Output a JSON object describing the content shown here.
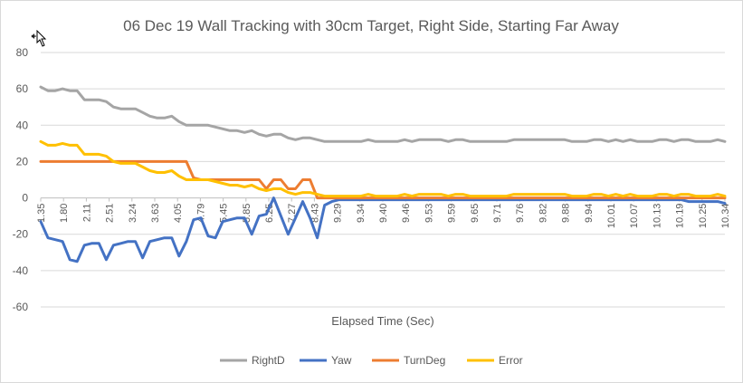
{
  "chart_data": {
    "type": "line",
    "title": "06 Dec 19 Wall Tracking with 30cm Target, Right Side, Starting Far Away",
    "xlabel": "Elapsed Time (Sec)",
    "ylabel": "",
    "ylim": [
      -60,
      80
    ],
    "yticks": [
      -60,
      -40,
      -20,
      0,
      20,
      40,
      60,
      80
    ],
    "grid": true,
    "legend_position": "bottom",
    "x_tick_labels": [
      "1.35",
      "1.80",
      "2.11",
      "2.51",
      "3.24",
      "3.63",
      "4.05",
      "4.79",
      "5.45",
      "5.85",
      "6.25",
      "7.27",
      "8.43",
      "9.29",
      "9.34",
      "9.40",
      "9.46",
      "9.53",
      "9.59",
      "9.65",
      "9.71",
      "9.76",
      "9.82",
      "9.88",
      "9.94",
      "10.01",
      "10.07",
      "10.13",
      "10.19",
      "10.25",
      "10.34"
    ],
    "series": [
      {
        "name": "RightD",
        "color": "#a5a5a5",
        "values": [
          61,
          59,
          59,
          60,
          59,
          59,
          54,
          54,
          54,
          53,
          50,
          49,
          49,
          49,
          47,
          45,
          44,
          44,
          45,
          42,
          40,
          40,
          40,
          40,
          39,
          38,
          37,
          37,
          36,
          37,
          35,
          34,
          35,
          35,
          33,
          32,
          33,
          33,
          32,
          31,
          31,
          31,
          31,
          31,
          31,
          32,
          31,
          31,
          31,
          31,
          32,
          31,
          32,
          32,
          32,
          32,
          31,
          32,
          32,
          31,
          31,
          31,
          31,
          31,
          31,
          32,
          32,
          32,
          32,
          32,
          32,
          32,
          32,
          31,
          31,
          31,
          32,
          32,
          31,
          32,
          31,
          32,
          31,
          31,
          31,
          32,
          32,
          31,
          32,
          32,
          31,
          31,
          31,
          32,
          31
        ]
      },
      {
        "name": "Yaw",
        "color": "#4472c4",
        "values": [
          -13,
          -22,
          -23,
          -24,
          -34,
          -35,
          -26,
          -25,
          -25,
          -34,
          -26,
          -25,
          -24,
          -24,
          -33,
          -24,
          -23,
          -22,
          -22,
          -32,
          -24,
          -12,
          -11,
          -21,
          -22,
          -13,
          -12,
          -11,
          -11,
          -20,
          -10,
          -9,
          0,
          -10,
          -20,
          -11,
          -2,
          -11,
          -22,
          -4,
          -2,
          -1,
          -1,
          -1,
          -1,
          -1,
          -1,
          -1,
          -1,
          -1,
          -1,
          -1,
          -1,
          -1,
          -1,
          -1,
          -1,
          -1,
          -1,
          -1,
          -1,
          -1,
          -1,
          -1,
          -1,
          -1,
          -1,
          -1,
          -1,
          -1,
          -1,
          -1,
          -1,
          -1,
          -1,
          -1,
          -1,
          -1,
          -1,
          -1,
          -1,
          -1,
          -1,
          -1,
          -1,
          -1,
          -1,
          -1,
          -1,
          -2,
          -2,
          -2,
          -2,
          -2,
          -3
        ]
      },
      {
        "name": "TurnDeg",
        "color": "#ed7d31",
        "values": [
          20,
          20,
          20,
          20,
          20,
          20,
          20,
          20,
          20,
          20,
          20,
          20,
          20,
          20,
          20,
          20,
          20,
          20,
          20,
          20,
          20,
          11,
          10,
          10,
          10,
          10,
          10,
          10,
          10,
          10,
          10,
          5,
          10,
          10,
          5,
          5,
          10,
          10,
          0,
          0,
          0,
          0,
          0,
          0,
          0,
          0,
          0,
          0,
          0,
          0,
          0,
          0,
          0,
          0,
          0,
          0,
          0,
          0,
          0,
          0,
          0,
          0,
          0,
          0,
          0,
          0,
          0,
          0,
          0,
          0,
          0,
          0,
          0,
          0,
          0,
          0,
          0,
          0,
          0,
          0,
          0,
          0,
          0,
          0,
          0,
          0,
          0,
          0,
          0,
          0,
          0,
          0,
          0,
          0,
          0
        ]
      },
      {
        "name": "Error",
        "color": "#ffc000",
        "values": [
          31,
          29,
          29,
          30,
          29,
          29,
          24,
          24,
          24,
          23,
          20,
          19,
          19,
          19,
          17,
          15,
          14,
          14,
          15,
          12,
          10,
          10,
          10,
          10,
          9,
          8,
          7,
          7,
          6,
          7,
          5,
          4,
          5,
          5,
          3,
          2,
          3,
          3,
          2,
          1,
          1,
          1,
          1,
          1,
          1,
          2,
          1,
          1,
          1,
          1,
          2,
          1,
          2,
          2,
          2,
          2,
          1,
          2,
          2,
          1,
          1,
          1,
          1,
          1,
          1,
          2,
          2,
          2,
          2,
          2,
          2,
          2,
          2,
          1,
          1,
          1,
          2,
          2,
          1,
          2,
          1,
          2,
          1,
          1,
          1,
          2,
          2,
          1,
          2,
          2,
          1,
          1,
          1,
          2,
          1
        ]
      }
    ]
  }
}
